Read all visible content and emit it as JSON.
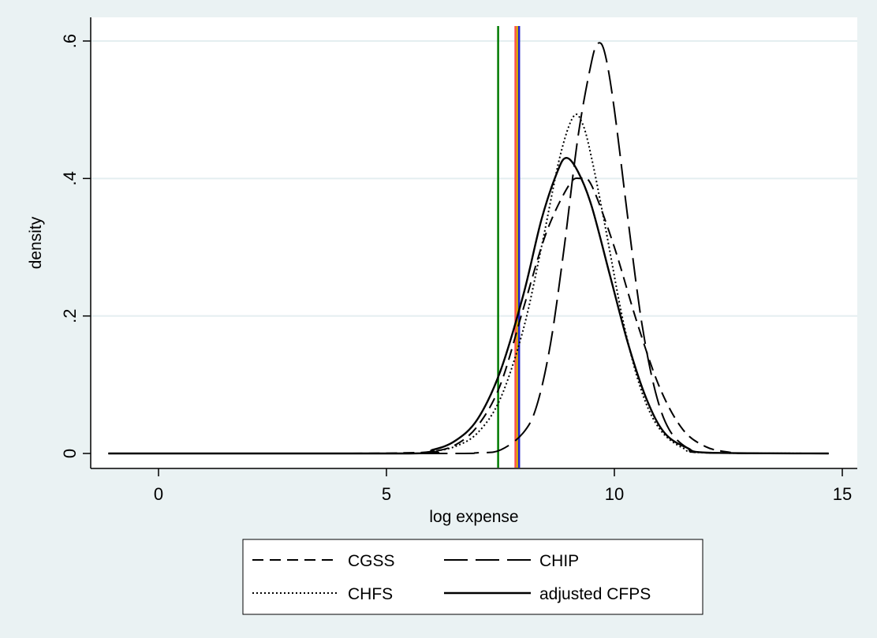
{
  "chart_data": {
    "type": "line",
    "title": "",
    "xlabel": "log expense",
    "ylabel": "density",
    "xlim": [
      -1.1,
      14.7
    ],
    "ylim": [
      0,
      0.6
    ],
    "x_ticks": [
      0,
      5,
      10,
      15
    ],
    "x_tick_labels": [
      "0",
      "5",
      "10",
      "15"
    ],
    "y_ticks": [
      0,
      0.2,
      0.4,
      0.6
    ],
    "y_tick_labels": [
      "0",
      ".2",
      ".4",
      ".6"
    ],
    "grid": "horizontal",
    "legend_position": "bottom",
    "series": [
      {
        "name": "CGSS",
        "style": "dash",
        "x": [
          -1.1,
          4.0,
          5.5,
          6.0,
          6.5,
          7.0,
          7.5,
          8.0,
          8.5,
          9.0,
          9.25,
          9.5,
          10.0,
          10.5,
          11.0,
          11.5,
          12.0,
          12.5,
          13.0,
          14.7
        ],
        "y": [
          0,
          0,
          0.001,
          0.003,
          0.012,
          0.04,
          0.1,
          0.21,
          0.32,
          0.39,
          0.4,
          0.39,
          0.3,
          0.19,
          0.095,
          0.035,
          0.01,
          0.002,
          0,
          0
        ]
      },
      {
        "name": "CHIP",
        "style": "longdash",
        "x": [
          -1.1,
          6.0,
          7.0,
          7.5,
          8.0,
          8.3,
          8.6,
          8.9,
          9.2,
          9.5,
          9.65,
          9.8,
          10.0,
          10.3,
          10.6,
          10.9,
          11.2,
          11.6,
          12.0,
          14.7
        ],
        "y": [
          0,
          0,
          0.001,
          0.005,
          0.03,
          0.07,
          0.16,
          0.3,
          0.46,
          0.57,
          0.597,
          0.58,
          0.5,
          0.34,
          0.19,
          0.09,
          0.035,
          0.008,
          0.001,
          0
        ]
      },
      {
        "name": "CHFS",
        "style": "dot",
        "x": [
          -1.1,
          5.5,
          6.0,
          6.5,
          7.0,
          7.5,
          8.0,
          8.4,
          8.8,
          9.1,
          9.3,
          9.5,
          9.8,
          10.2,
          10.6,
          11.0,
          11.5,
          12.0,
          14.7
        ],
        "y": [
          0,
          0,
          0.003,
          0.01,
          0.03,
          0.08,
          0.18,
          0.3,
          0.43,
          0.49,
          0.48,
          0.43,
          0.33,
          0.19,
          0.09,
          0.035,
          0.008,
          0.001,
          0
        ]
      },
      {
        "name": "adjusted CFPS",
        "style": "solid",
        "x": [
          -1.1,
          5.5,
          6.0,
          6.5,
          7.0,
          7.5,
          8.0,
          8.4,
          8.75,
          8.95,
          9.2,
          9.5,
          9.9,
          10.3,
          10.7,
          11.1,
          11.6,
          12.1,
          14.7
        ],
        "y": [
          0,
          0,
          0.005,
          0.018,
          0.05,
          0.12,
          0.23,
          0.34,
          0.41,
          0.43,
          0.41,
          0.36,
          0.26,
          0.16,
          0.08,
          0.03,
          0.008,
          0.001,
          0
        ]
      }
    ],
    "reference_lines": [
      {
        "x": 7.45,
        "color": "#007a00"
      },
      {
        "x": 7.83,
        "color": "#ff4d4d"
      },
      {
        "x": 7.87,
        "color": "#d8ad00"
      },
      {
        "x": 7.91,
        "color": "#2222cc"
      }
    ]
  }
}
